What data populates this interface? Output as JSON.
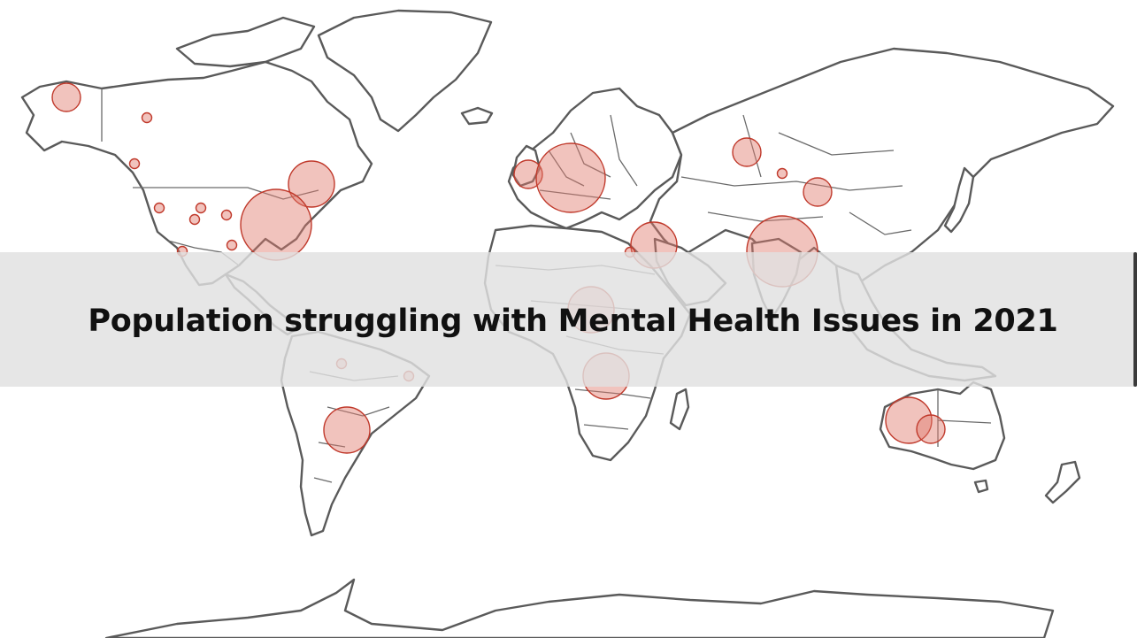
{
  "title": "Population struggling with Mental Health Issues in 2021",
  "colors": {
    "background": "#ffffff",
    "land_fill": "#ffffff",
    "coastline": "#5a5a5a",
    "bubble_fill": "#e07a6c",
    "bubble_stroke": "#c0392b",
    "title_band": "#e1e1e1",
    "title_text": "#111111"
  },
  "legend": {
    "encoding": "circle area = relative population affected",
    "shown": false
  }
}
